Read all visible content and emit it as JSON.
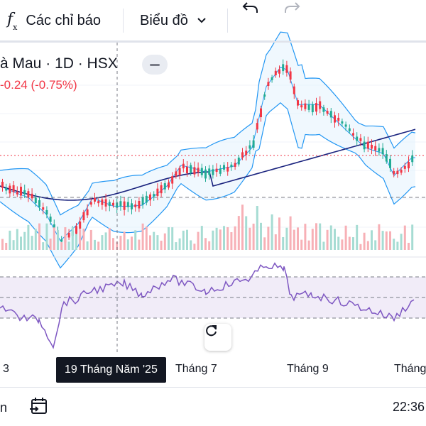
{
  "toolbar": {
    "indicators_label": "Các chỉ báo",
    "chart_type_label": "Biểu đồ",
    "undo_icon": "undo-icon",
    "redo_icon": "redo-icon"
  },
  "legend": {
    "title": "à Mau · 1D · HSX",
    "change": "-0.24 (-0.75%)"
  },
  "time_axis": {
    "labels": [
      "3",
      "Tháng 7",
      "Tháng 9",
      "Tháng"
    ],
    "highlighted": "19 Tháng Năm '25"
  },
  "bottom": {
    "left_text": "n",
    "time": "22:36"
  },
  "colors": {
    "up": "#22ab94",
    "down": "#f23645",
    "bollinger": "#2196f3",
    "ma": "#1a237e",
    "rsi": "#7e57c2",
    "rsi_band": "#ede7f6"
  }
}
